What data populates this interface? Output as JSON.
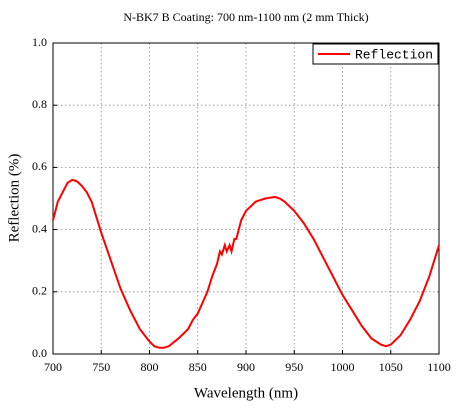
{
  "chart_data": {
    "type": "line",
    "title": "N-BK7 B Coating: 700 nm-1100 nm (2 mm Thick)",
    "x_label": "Wavelength (nm)",
    "y_label": "Reflection (%)",
    "x": [
      700,
      705,
      710,
      715,
      720,
      725,
      730,
      735,
      740,
      745,
      750,
      760,
      770,
      780,
      790,
      800,
      805,
      810,
      815,
      820,
      830,
      840,
      845,
      850,
      860,
      865,
      870,
      873,
      875,
      878,
      880,
      883,
      885,
      888,
      890,
      895,
      900,
      910,
      920,
      930,
      935,
      940,
      950,
      960,
      970,
      980,
      990,
      1000,
      1010,
      1020,
      1030,
      1040,
      1045,
      1050,
      1060,
      1070,
      1080,
      1090,
      1100
    ],
    "series": [
      {
        "name": "Reflection",
        "color": "#ff0000",
        "values": [
          0.43,
          0.49,
          0.52,
          0.55,
          0.56,
          0.555,
          0.54,
          0.52,
          0.49,
          0.44,
          0.39,
          0.3,
          0.21,
          0.14,
          0.08,
          0.04,
          0.025,
          0.02,
          0.02,
          0.025,
          0.05,
          0.08,
          0.11,
          0.13,
          0.2,
          0.25,
          0.29,
          0.33,
          0.32,
          0.35,
          0.33,
          0.35,
          0.33,
          0.37,
          0.37,
          0.43,
          0.46,
          0.49,
          0.5,
          0.505,
          0.5,
          0.49,
          0.46,
          0.42,
          0.37,
          0.31,
          0.25,
          0.19,
          0.14,
          0.09,
          0.05,
          0.03,
          0.025,
          0.03,
          0.06,
          0.11,
          0.17,
          0.25,
          0.35
        ]
      }
    ],
    "xlim": [
      700,
      1100
    ],
    "xticks": [
      700,
      750,
      800,
      850,
      900,
      950,
      1000,
      1050,
      1100
    ],
    "ylim": [
      0,
      1
    ],
    "yticks": [
      {
        "value": 0,
        "label": "0.0"
      },
      0.2,
      0.4,
      0.6,
      0.8,
      {
        "value": 1,
        "label": "1.0"
      }
    ],
    "grid": true,
    "legend": "top-right"
  }
}
